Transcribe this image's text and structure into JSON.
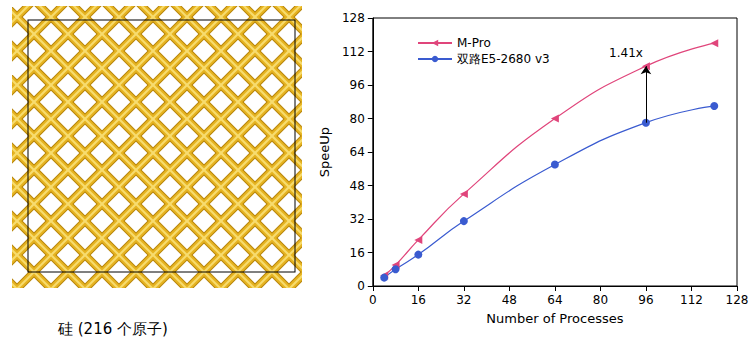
{
  "chart_data": {
    "type": "line",
    "x_label": "Number of Processes",
    "y_label": "SpeeUp",
    "x": [
      4,
      8,
      16,
      32,
      64,
      96,
      120
    ],
    "xlim": [
      0,
      128
    ],
    "xticks": [
      0,
      16,
      32,
      48,
      64,
      80,
      96,
      112,
      128
    ],
    "ylim": [
      0,
      128
    ],
    "yticks": [
      0,
      16,
      32,
      48,
      64,
      80,
      96,
      112,
      128
    ],
    "legend": "upper left",
    "series": [
      {
        "name": "M-Pro",
        "color": "#e0457b",
        "marker": "triangle-left",
        "line_style": "smooth",
        "values": [
          5,
          10,
          22,
          44,
          80,
          105,
          116
        ]
      },
      {
        "name": "双路E5-2680 v3",
        "color": "#3a5bd0",
        "marker": "circle",
        "line_style": "smooth",
        "values": [
          4,
          8,
          15,
          31,
          58,
          78,
          86
        ]
      }
    ],
    "annotations": [
      {
        "text": "1.41x",
        "x": 96
      }
    ]
  },
  "figure": {
    "caption": "硅 (216 个原子)"
  }
}
